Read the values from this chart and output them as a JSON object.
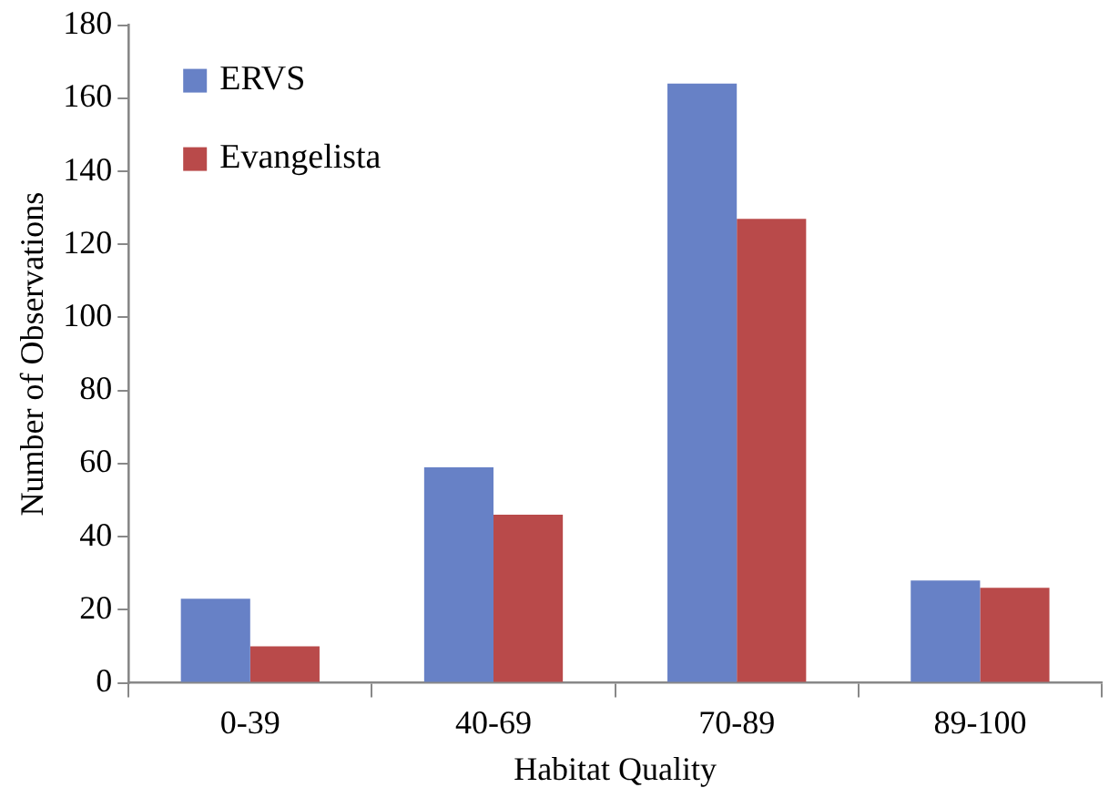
{
  "chart_data": {
    "type": "bar",
    "xlabel": "Habitat Quality",
    "ylabel": "Number of Observations",
    "categories": [
      "0-39",
      "40-69",
      "70-89",
      "89-100"
    ],
    "series": [
      {
        "name": "ERVS",
        "color": "#6781c6",
        "values": [
          23,
          59,
          164,
          28
        ]
      },
      {
        "name": "Evangelista",
        "color": "#b94a4a",
        "values": [
          10,
          46,
          127,
          26
        ]
      }
    ],
    "ylim": [
      0,
      180
    ],
    "yticks": [
      0,
      20,
      40,
      60,
      80,
      100,
      120,
      140,
      160,
      180
    ],
    "grid": false,
    "legend": "top left"
  }
}
